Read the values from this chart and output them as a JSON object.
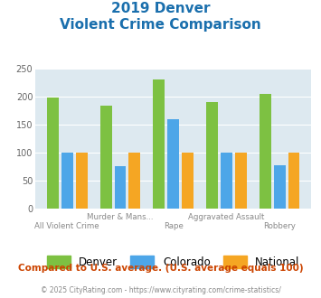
{
  "title_line1": "2019 Denver",
  "title_line2": "Violent Crime Comparison",
  "categories": [
    "All Violent Crime",
    "Murder & Mans...",
    "Rape",
    "Aggravated Assault",
    "Robbery"
  ],
  "denver": [
    199,
    184,
    230,
    191,
    204
  ],
  "colorado": [
    100,
    76,
    160,
    100,
    77
  ],
  "national": [
    100,
    100,
    100,
    100,
    100
  ],
  "color_denver": "#7dc142",
  "color_colorado": "#4da6e8",
  "color_national": "#f5a623",
  "ylim": [
    0,
    250
  ],
  "yticks": [
    0,
    50,
    100,
    150,
    200,
    250
  ],
  "bg_color": "#dde9f0",
  "title_color": "#1a6fad",
  "footer_text": "Compared to U.S. average. (U.S. average equals 100)",
  "footer_color": "#cc4400",
  "copyright_text": "© 2025 CityRating.com - https://www.cityrating.com/crime-statistics/",
  "copyright_color": "#888888",
  "legend_labels": [
    "Denver",
    "Colorado",
    "National"
  ]
}
